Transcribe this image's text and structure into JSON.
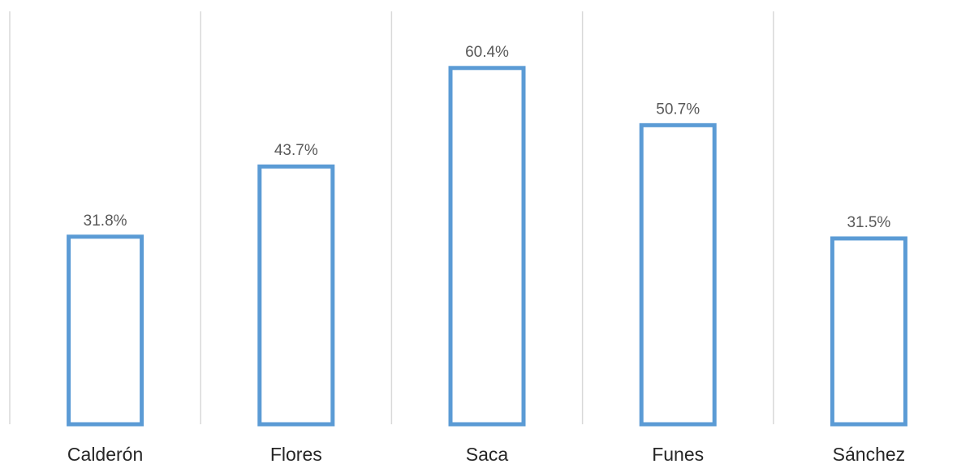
{
  "chart_data": {
    "type": "bar",
    "title": "",
    "xlabel": "",
    "ylabel": "",
    "categories": [
      "Calderón",
      "Flores",
      "Saca",
      "Funes",
      "Sánchez"
    ],
    "values": [
      31.8,
      43.7,
      60.4,
      50.7,
      31.5
    ],
    "value_labels": [
      "31.8%",
      "43.7%",
      "60.4%",
      "50.7%",
      "31.5%"
    ],
    "ylim": [
      0,
      70
    ],
    "grid": "vertical category separators",
    "legend": "none",
    "colors": {
      "bar_outline": "#5b9bd5",
      "bar_fill": "#ffffff",
      "grid": "#d9d9d9"
    }
  }
}
